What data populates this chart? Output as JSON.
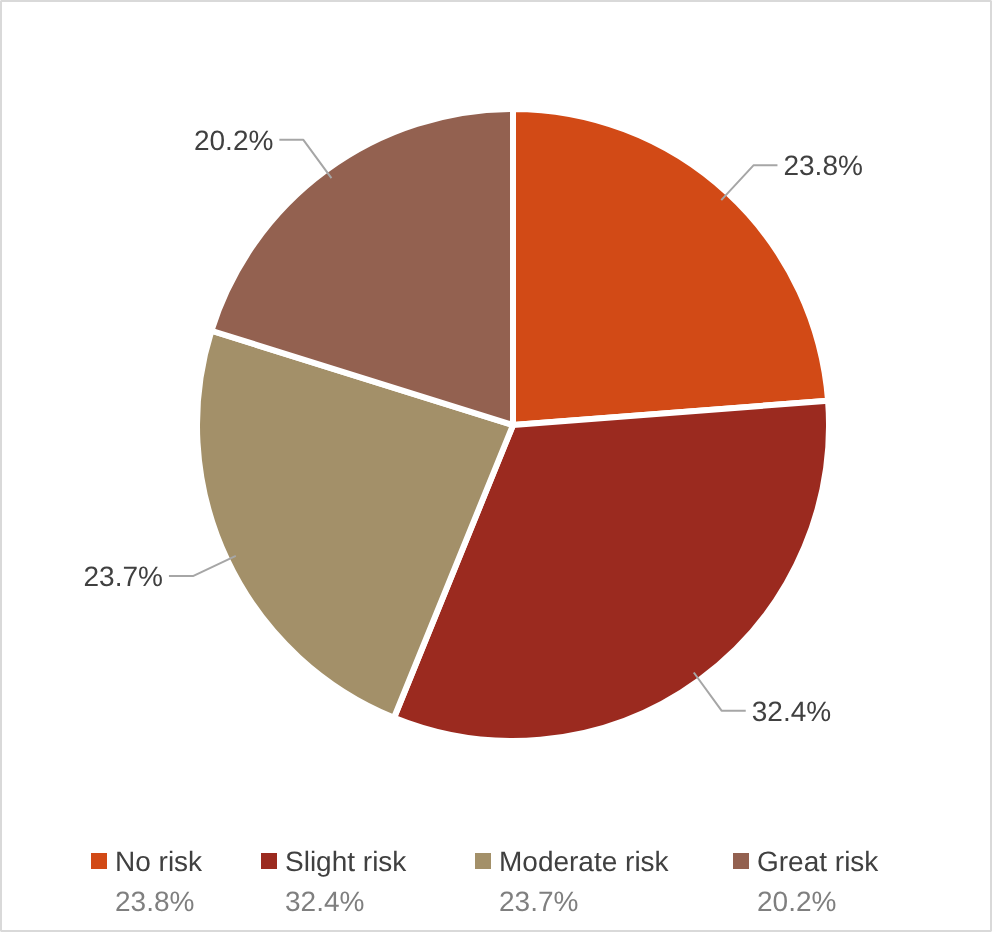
{
  "chart_data": {
    "type": "pie",
    "categories": [
      "No risk",
      "Slight risk",
      "Moderate risk",
      "Great risk"
    ],
    "values": [
      23.8,
      32.4,
      23.7,
      20.2
    ],
    "colors": [
      "#d24a16",
      "#9b2a1f",
      "#a39069",
      "#936150"
    ],
    "value_labels": [
      "23.8%",
      "32.4%",
      "23.7%",
      "20.2%"
    ],
    "legend": "bottom"
  }
}
